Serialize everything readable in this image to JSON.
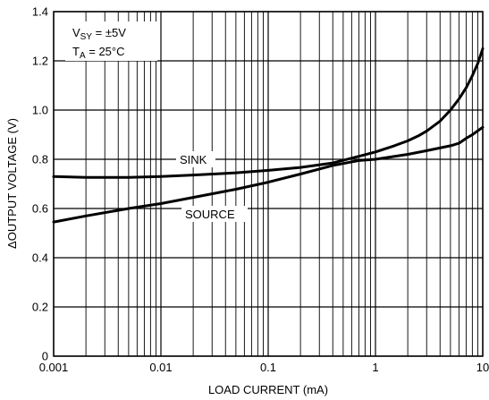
{
  "chart_data": {
    "type": "line",
    "x_scale": "log",
    "grid": true,
    "xlabel": "LOAD CURRENT (mA)",
    "ylabel": "ΔOUTPUT VOLTAGE (V)",
    "xlim": [
      0.001,
      10
    ],
    "ylim": [
      0,
      1.4
    ],
    "x_ticks": [
      0.001,
      0.01,
      0.1,
      1,
      10
    ],
    "x_tick_labels": [
      "0.001",
      "0.01",
      "0.1",
      "1",
      "10"
    ],
    "y_ticks": [
      0,
      0.2,
      0.4,
      0.6,
      0.8,
      1.0,
      1.2,
      1.4
    ],
    "y_tick_labels": [
      "0",
      "0.2",
      "0.4",
      "0.6",
      "0.8",
      "1.0",
      "1.2",
      "1.4"
    ],
    "conditions": {
      "supply_main": "V",
      "supply_sub": "SY",
      "supply_value": " = ±5V",
      "temp_main": "T",
      "temp_sub": "A",
      "temp_value": " = 25°C"
    },
    "series": [
      {
        "name": "SINK",
        "x": [
          0.001,
          0.002,
          0.005,
          0.01,
          0.02,
          0.05,
          0.1,
          0.2,
          0.4,
          0.7,
          1,
          1.5,
          2,
          2.5,
          3,
          4,
          5,
          6,
          7,
          8,
          9,
          10
        ],
        "y": [
          0.73,
          0.726,
          0.726,
          0.73,
          0.736,
          0.745,
          0.755,
          0.767,
          0.785,
          0.812,
          0.83,
          0.855,
          0.875,
          0.895,
          0.915,
          0.955,
          1.0,
          1.045,
          1.09,
          1.14,
          1.19,
          1.25
        ]
      },
      {
        "name": "SOURCE",
        "x": [
          0.001,
          0.002,
          0.005,
          0.01,
          0.02,
          0.05,
          0.1,
          0.2,
          0.4,
          0.7,
          1,
          2,
          3,
          5,
          6,
          7,
          8,
          10
        ],
        "y": [
          0.545,
          0.57,
          0.6,
          0.62,
          0.645,
          0.678,
          0.707,
          0.74,
          0.775,
          0.795,
          0.8,
          0.82,
          0.835,
          0.855,
          0.865,
          0.885,
          0.9,
          0.93
        ]
      }
    ]
  }
}
